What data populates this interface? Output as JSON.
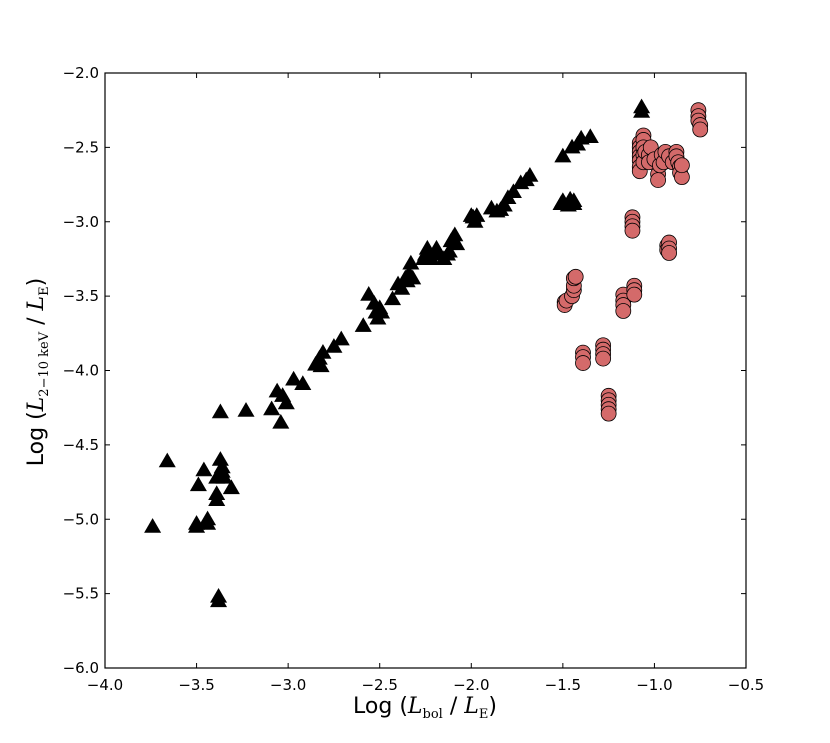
{
  "chart_data": {
    "type": "scatter",
    "title": "",
    "xlim": [
      -4.0,
      -0.5
    ],
    "ylim": [
      -6.0,
      -2.0
    ],
    "x_ticks": [
      -4.0,
      -3.5,
      -3.0,
      -2.5,
      -2.0,
      -1.5,
      -1.0,
      -0.5
    ],
    "y_ticks": [
      -6.0,
      -5.5,
      -5.0,
      -4.5,
      -4.0,
      -3.5,
      -3.0,
      -2.5,
      -2.0
    ],
    "x_tick_labels": [
      "−4.0",
      "−3.5",
      "−3.0",
      "−2.5",
      "−2.0",
      "−1.5",
      "−1.0",
      "−0.5"
    ],
    "y_tick_labels": [
      "−6.0",
      "−5.5",
      "−5.0",
      "−4.5",
      "−4.0",
      "−3.5",
      "−3.0",
      "−2.5",
      "−2.0"
    ],
    "xlabel": {
      "pre": "Log (",
      "sym": "L",
      "sub": "bol",
      "mid": " / ",
      "sym2": "L",
      "sub2": "E",
      "post": ")"
    },
    "ylabel": {
      "pre": "Log (",
      "sym": "L",
      "sub": "2−10 keV",
      "mid": " / ",
      "sym2": "L",
      "sub2": "E",
      "post": ")"
    },
    "grid": false,
    "legend": "none",
    "series": [
      {
        "marker": "triangle",
        "color": "#000000",
        "points": [
          [
            -3.74,
            -5.05
          ],
          [
            -3.66,
            -4.61
          ],
          [
            -3.5,
            -5.05
          ],
          [
            -3.5,
            -5.03
          ],
          [
            -3.49,
            -4.77
          ],
          [
            -3.46,
            -4.67
          ],
          [
            -3.44,
            -5.03
          ],
          [
            -3.44,
            -5.0
          ],
          [
            -3.39,
            -4.87
          ],
          [
            -3.39,
            -4.83
          ],
          [
            -3.39,
            -4.72
          ],
          [
            -3.38,
            -5.55
          ],
          [
            -3.38,
            -5.52
          ],
          [
            -3.37,
            -4.28
          ],
          [
            -3.37,
            -4.6
          ],
          [
            -3.36,
            -4.65
          ],
          [
            -3.36,
            -4.68
          ],
          [
            -3.35,
            -4.72
          ],
          [
            -3.31,
            -4.79
          ],
          [
            -3.23,
            -4.27
          ],
          [
            -3.09,
            -4.26
          ],
          [
            -3.06,
            -4.14
          ],
          [
            -3.04,
            -4.35
          ],
          [
            -3.03,
            -4.17
          ],
          [
            -3.01,
            -4.22
          ],
          [
            -2.97,
            -4.06
          ],
          [
            -2.92,
            -4.09
          ],
          [
            -2.85,
            -3.96
          ],
          [
            -2.83,
            -3.92
          ],
          [
            -2.82,
            -3.97
          ],
          [
            -2.81,
            -3.88
          ],
          [
            -2.75,
            -3.84
          ],
          [
            -2.71,
            -3.79
          ],
          [
            -2.59,
            -3.7
          ],
          [
            -2.56,
            -3.49
          ],
          [
            -2.53,
            -3.55
          ],
          [
            -2.52,
            -3.61
          ],
          [
            -2.51,
            -3.65
          ],
          [
            -2.5,
            -3.58
          ],
          [
            -2.49,
            -3.61
          ],
          [
            -2.43,
            -3.52
          ],
          [
            -2.4,
            -3.42
          ],
          [
            -2.38,
            -3.45
          ],
          [
            -2.36,
            -3.38
          ],
          [
            -2.35,
            -3.4
          ],
          [
            -2.34,
            -3.35
          ],
          [
            -2.33,
            -3.28
          ],
          [
            -2.32,
            -3.38
          ],
          [
            -2.26,
            -3.25
          ],
          [
            -2.25,
            -3.22
          ],
          [
            -2.24,
            -3.18
          ],
          [
            -2.22,
            -3.25
          ],
          [
            -2.2,
            -3.22
          ],
          [
            -2.19,
            -3.18
          ],
          [
            -2.18,
            -3.22
          ],
          [
            -2.15,
            -3.25
          ],
          [
            -2.13,
            -3.22
          ],
          [
            -2.12,
            -3.2
          ],
          [
            -2.11,
            -3.13
          ],
          [
            -2.1,
            -3.11
          ],
          [
            -2.09,
            -3.09
          ],
          [
            -2.08,
            -3.15
          ],
          [
            -2.0,
            -2.96
          ],
          [
            -1.99,
            -2.97
          ],
          [
            -1.98,
            -3.0
          ],
          [
            -1.97,
            -2.96
          ],
          [
            -1.89,
            -2.91
          ],
          [
            -1.86,
            -2.93
          ],
          [
            -1.84,
            -2.92
          ],
          [
            -1.82,
            -2.89
          ],
          [
            -1.8,
            -2.84
          ],
          [
            -1.77,
            -2.8
          ],
          [
            -1.73,
            -2.74
          ],
          [
            -1.7,
            -2.72
          ],
          [
            -1.68,
            -2.69
          ],
          [
            -1.51,
            -2.88
          ],
          [
            -1.5,
            -2.86
          ],
          [
            -1.5,
            -2.56
          ],
          [
            -1.47,
            -2.89
          ],
          [
            -1.46,
            -2.85
          ],
          [
            -1.45,
            -2.5
          ],
          [
            -1.44,
            -2.88
          ],
          [
            -1.44,
            -2.86
          ],
          [
            -1.42,
            -2.48
          ],
          [
            -1.4,
            -2.44
          ],
          [
            -1.35,
            -2.43
          ],
          [
            -1.07,
            -2.26
          ],
          [
            -1.07,
            -2.23
          ]
        ]
      },
      {
        "marker": "circle",
        "color": "#d46a6a",
        "points": [
          [
            -1.49,
            -3.54
          ],
          [
            -1.49,
            -3.56
          ],
          [
            -1.48,
            -3.53
          ],
          [
            -1.45,
            -3.5
          ],
          [
            -1.44,
            -3.46
          ],
          [
            -1.44,
            -3.43
          ],
          [
            -1.44,
            -3.38
          ],
          [
            -1.43,
            -3.37
          ],
          [
            -1.39,
            -3.88
          ],
          [
            -1.39,
            -3.91
          ],
          [
            -1.39,
            -3.95
          ],
          [
            -1.28,
            -3.83
          ],
          [
            -1.28,
            -3.86
          ],
          [
            -1.28,
            -3.89
          ],
          [
            -1.28,
            -3.92
          ],
          [
            -1.25,
            -4.17
          ],
          [
            -1.25,
            -4.2
          ],
          [
            -1.25,
            -4.23
          ],
          [
            -1.25,
            -4.26
          ],
          [
            -1.25,
            -4.29
          ],
          [
            -1.17,
            -3.49
          ],
          [
            -1.17,
            -3.53
          ],
          [
            -1.17,
            -3.56
          ],
          [
            -1.17,
            -3.6
          ],
          [
            -1.12,
            -2.97
          ],
          [
            -1.12,
            -3.0
          ],
          [
            -1.12,
            -3.03
          ],
          [
            -1.12,
            -3.06
          ],
          [
            -1.11,
            -3.43
          ],
          [
            -1.11,
            -3.46
          ],
          [
            -1.11,
            -3.49
          ],
          [
            -1.08,
            -2.47
          ],
          [
            -1.08,
            -2.5
          ],
          [
            -1.08,
            -2.53
          ],
          [
            -1.08,
            -2.56
          ],
          [
            -1.08,
            -2.59
          ],
          [
            -1.08,
            -2.63
          ],
          [
            -1.08,
            -2.66
          ],
          [
            -1.06,
            -2.42
          ],
          [
            -1.06,
            -2.45
          ],
          [
            -1.06,
            -2.5
          ],
          [
            -1.06,
            -2.55
          ],
          [
            -1.06,
            -2.6
          ],
          [
            -1.05,
            -2.53
          ],
          [
            -1.03,
            -2.55
          ],
          [
            -1.03,
            -2.6
          ],
          [
            -1.02,
            -2.5
          ],
          [
            -1.0,
            -2.58
          ],
          [
            -0.98,
            -2.68
          ],
          [
            -0.98,
            -2.72
          ],
          [
            -0.97,
            -2.62
          ],
          [
            -0.96,
            -2.55
          ],
          [
            -0.95,
            -2.6
          ],
          [
            -0.94,
            -2.53
          ],
          [
            -0.93,
            -3.16
          ],
          [
            -0.93,
            -3.19
          ],
          [
            -0.92,
            -3.14
          ],
          [
            -0.92,
            -3.18
          ],
          [
            -0.92,
            -3.21
          ],
          [
            -0.92,
            -2.56
          ],
          [
            -0.9,
            -2.6
          ],
          [
            -0.88,
            -2.53
          ],
          [
            -0.88,
            -2.56
          ],
          [
            -0.87,
            -2.6
          ],
          [
            -0.86,
            -2.63
          ],
          [
            -0.86,
            -2.67
          ],
          [
            -0.85,
            -2.7
          ],
          [
            -0.85,
            -2.62
          ],
          [
            -0.76,
            -2.25
          ],
          [
            -0.76,
            -2.29
          ],
          [
            -0.76,
            -2.32
          ],
          [
            -0.75,
            -2.35
          ],
          [
            -0.75,
            -2.38
          ]
        ]
      }
    ]
  }
}
